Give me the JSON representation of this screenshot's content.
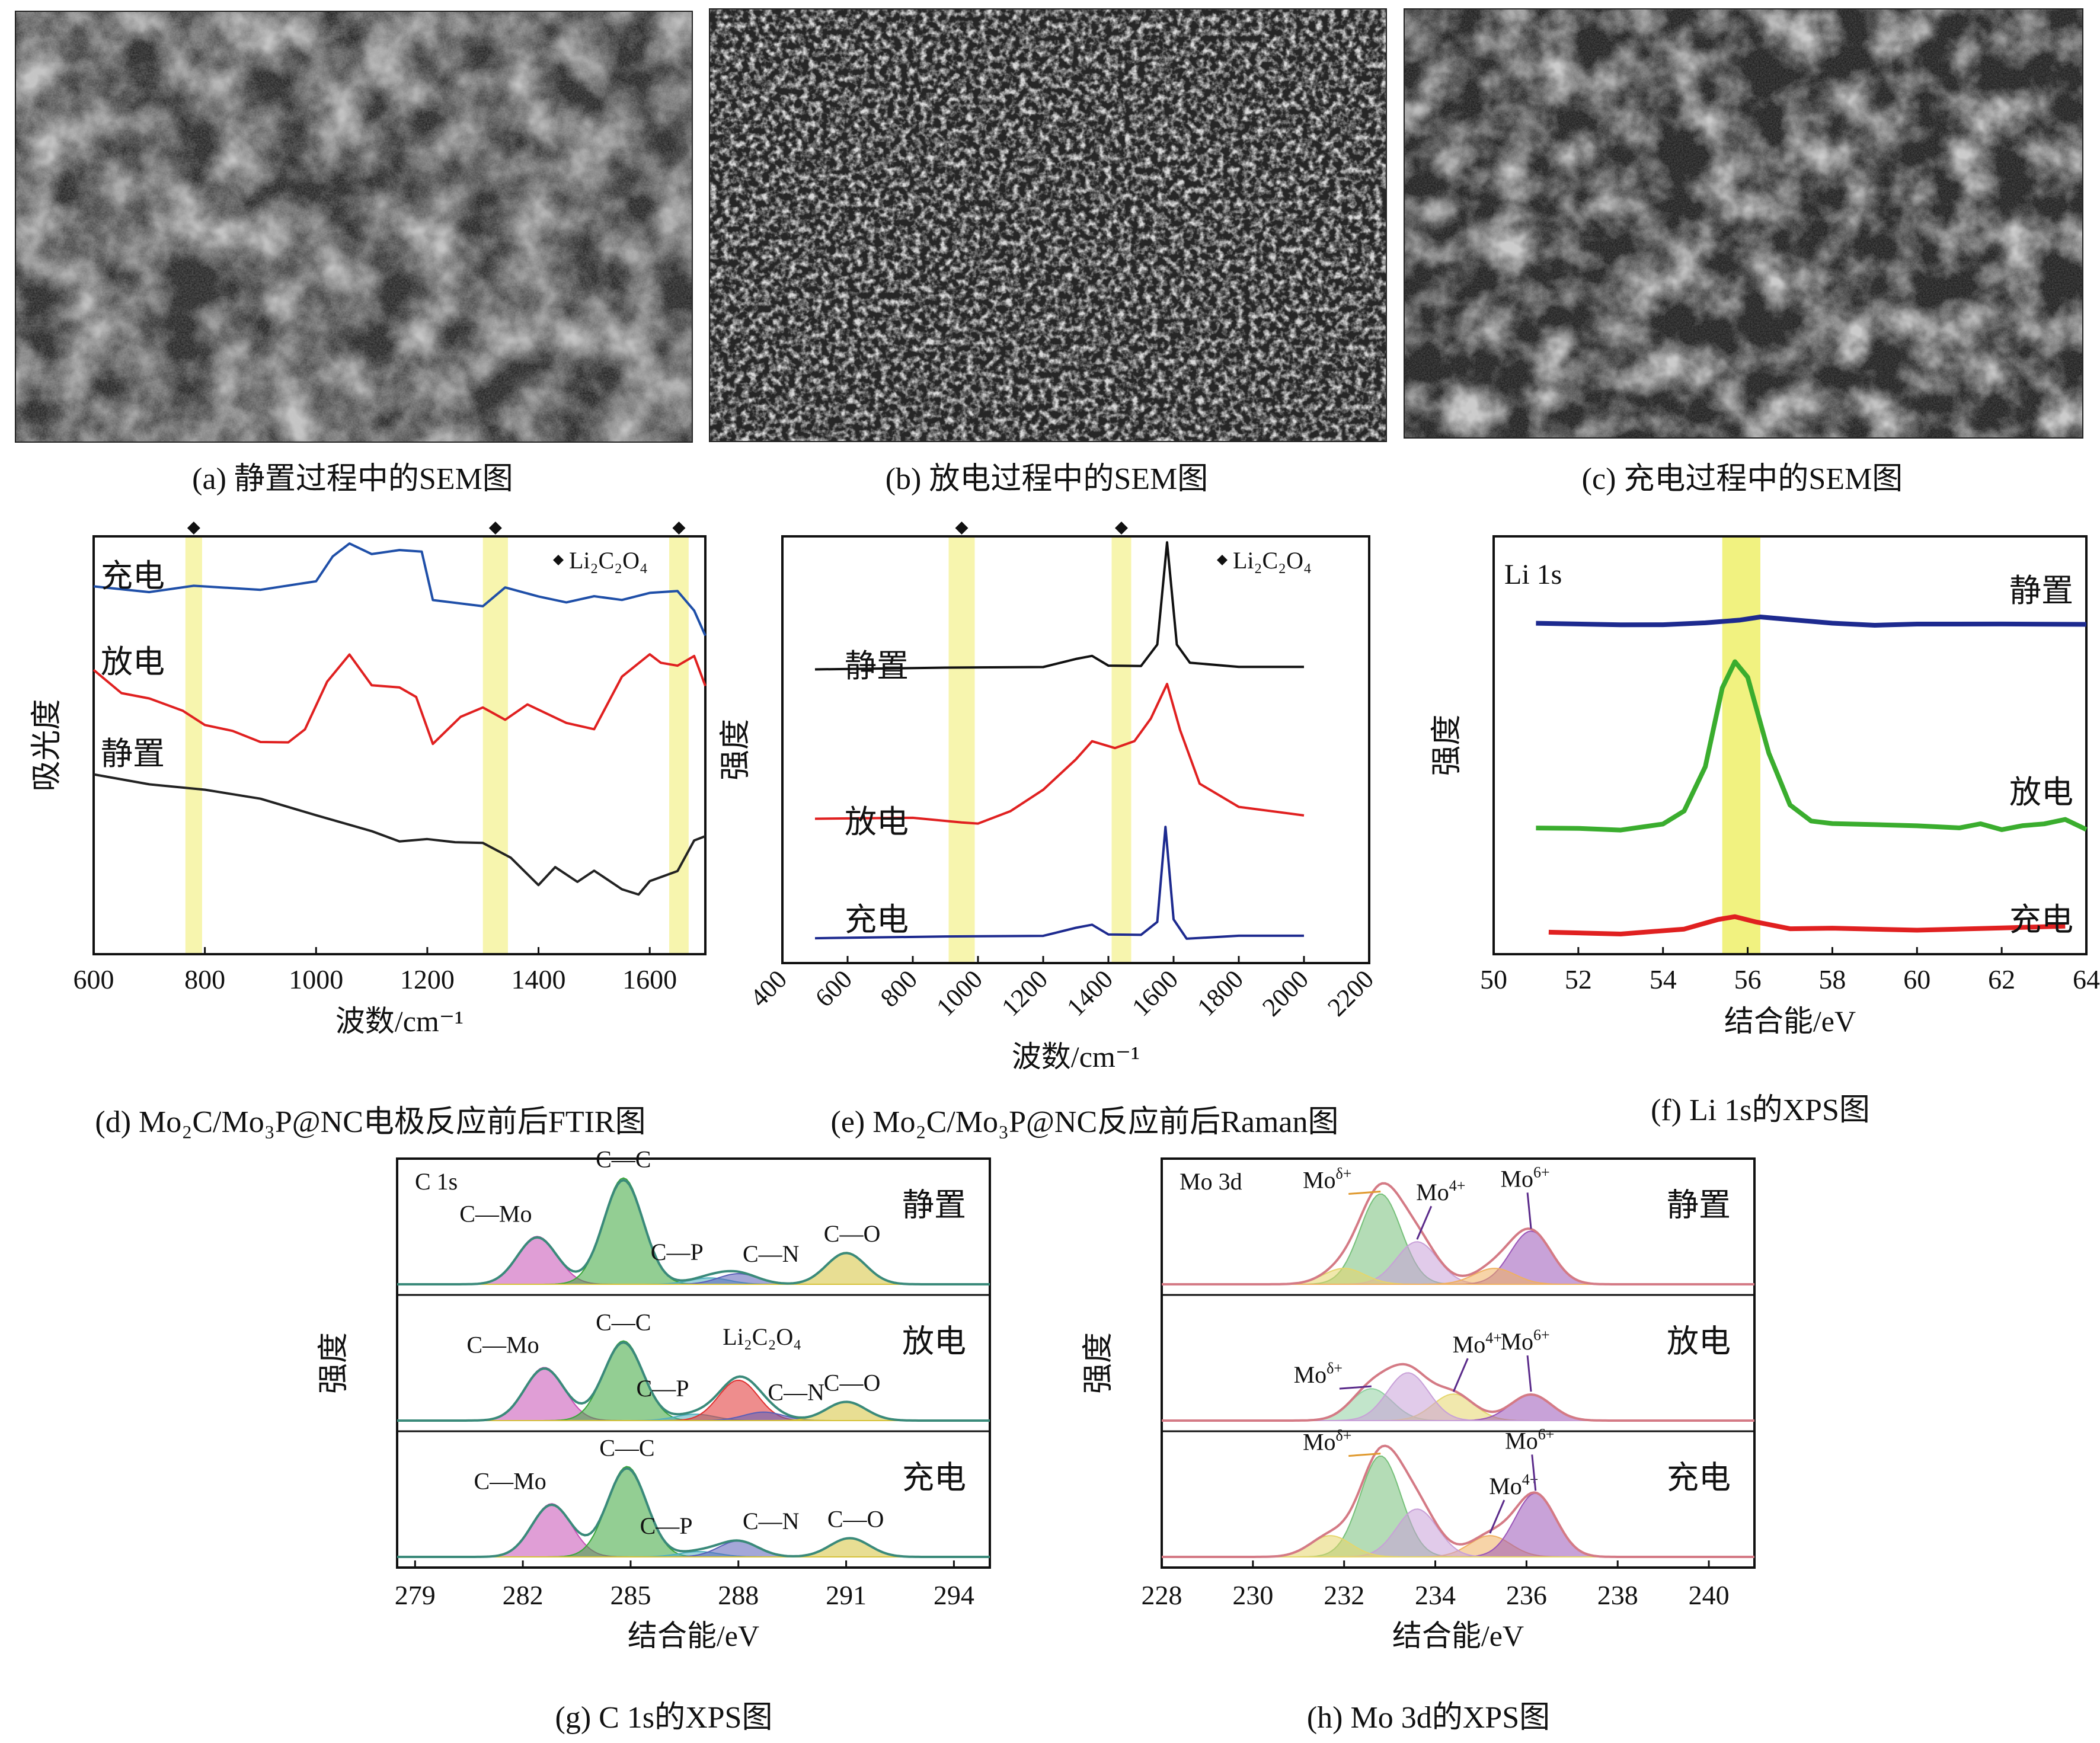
{
  "captions": {
    "a": "(a) 静置过程中的SEM图",
    "b": "(b) 放电过程中的SEM图",
    "c": "(c) 充电过程中的SEM图",
    "d": "(d) Mo₂C/Mo₃P@NC电极反应前后FTIR图",
    "e": "(e) Mo₂C/Mo₃P@NC反应前后Raman图",
    "f": "(f) Li 1s的XPS图",
    "g": "(g) C 1s的XPS图",
    "h": "(h) Mo 3d的XPS图"
  },
  "icons": {
    "marker": "diamond-icon",
    "arrow": "arrow-icon"
  },
  "colors": {
    "charge_ftir": "#1f4fa8",
    "discharge": "#e02020",
    "rest": "#222222",
    "li_rest": "#1d2a8f",
    "li_discharge": "#3aad2e",
    "li_charge": "#e02020",
    "highlight": "#f6f3a0",
    "highlight_f": "#eef06a"
  },
  "chart_data": [
    {
      "id": "d",
      "type": "line",
      "ylabel": "吸光度",
      "xlabel": "波数/cm⁻¹",
      "xlim": [
        600,
        1700
      ],
      "xticks": [
        "600",
        "800",
        "1000",
        "1200",
        "1400",
        "1600"
      ],
      "legend": "Li₂C₂O₄",
      "legend_marker": "diamond",
      "highlight_bands": [
        [
          765,
          795
        ],
        [
          1300,
          1345
        ],
        [
          1635,
          1670
        ]
      ],
      "series": [
        {
          "name": "充电",
          "x": [
            600,
            700,
            780,
            900,
            1000,
            1030,
            1060,
            1100,
            1150,
            1190,
            1210,
            1300,
            1340,
            1400,
            1450,
            1500,
            1550,
            1600,
            1650,
            1680,
            1700
          ],
          "y": [
            0.88,
            0.87,
            0.88,
            0.88,
            0.9,
            0.96,
            0.99,
            0.95,
            0.96,
            0.97,
            0.84,
            0.84,
            0.87,
            0.86,
            0.84,
            0.85,
            0.84,
            0.86,
            0.87,
            0.82,
            0.77
          ]
        },
        {
          "name": "放电",
          "x": [
            600,
            650,
            700,
            760,
            800,
            850,
            900,
            950,
            980,
            1020,
            1060,
            1100,
            1150,
            1180,
            1210,
            1260,
            1300,
            1340,
            1380,
            1450,
            1500,
            1550,
            1600,
            1620,
            1650,
            1680,
            1700
          ],
          "y": [
            0.68,
            0.63,
            0.62,
            0.58,
            0.55,
            0.53,
            0.5,
            0.5,
            0.53,
            0.66,
            0.71,
            0.65,
            0.64,
            0.62,
            0.51,
            0.57,
            0.59,
            0.56,
            0.6,
            0.56,
            0.54,
            0.66,
            0.71,
            0.7,
            0.69,
            0.71,
            0.65
          ]
        },
        {
          "name": "静置",
          "x": [
            600,
            700,
            800,
            900,
            1000,
            1100,
            1150,
            1200,
            1250,
            1300,
            1350,
            1400,
            1430,
            1470,
            1500,
            1550,
            1580,
            1600,
            1650,
            1680,
            1700
          ],
          "y": [
            0.43,
            0.41,
            0.4,
            0.38,
            0.34,
            0.3,
            0.27,
            0.27,
            0.26,
            0.26,
            0.23,
            0.17,
            0.21,
            0.17,
            0.2,
            0.15,
            0.14,
            0.17,
            0.2,
            0.27,
            0.29
          ]
        }
      ]
    },
    {
      "id": "e",
      "type": "line",
      "ylabel": "强度",
      "xlabel": "波数/cm⁻¹",
      "xlim": [
        400,
        2200
      ],
      "xticks": [
        "400",
        "600",
        "800",
        "1000",
        "1200",
        "1400",
        "1600",
        "1800",
        "2000",
        "2200"
      ],
      "legend": "Li₂C₂O₄",
      "legend_marker": "diamond",
      "highlight_bands": [
        [
          910,
          990
        ],
        [
          1410,
          1470
        ]
      ],
      "series": [
        {
          "name": "静置",
          "x": [
            500,
            900,
            1200,
            1300,
            1350,
            1400,
            1500,
            1550,
            1580,
            1610,
            1650,
            1800,
            2000
          ],
          "y": [
            0.69,
            0.69,
            0.69,
            0.71,
            0.72,
            0.7,
            0.7,
            0.75,
            0.99,
            0.75,
            0.7,
            0.69,
            0.69
          ]
        },
        {
          "name": "放电",
          "x": [
            500,
            800,
            950,
            1000,
            1100,
            1200,
            1300,
            1350,
            1420,
            1480,
            1530,
            1580,
            1620,
            1680,
            1800,
            2000
          ],
          "y": [
            0.34,
            0.34,
            0.33,
            0.33,
            0.36,
            0.41,
            0.48,
            0.52,
            0.5,
            0.52,
            0.57,
            0.65,
            0.55,
            0.42,
            0.37,
            0.35
          ]
        },
        {
          "name": "充电",
          "x": [
            500,
            900,
            1200,
            1300,
            1350,
            1400,
            1500,
            1550,
            1575,
            1600,
            1640,
            1800,
            2000
          ],
          "y": [
            0.06,
            0.06,
            0.06,
            0.08,
            0.09,
            0.07,
            0.07,
            0.1,
            0.32,
            0.1,
            0.06,
            0.06,
            0.06
          ]
        }
      ]
    },
    {
      "id": "f",
      "type": "line",
      "ylabel": "强度",
      "xlabel": "结合能/eV",
      "title": "Li 1s",
      "xlim": [
        50,
        64
      ],
      "xticks": [
        "50",
        "52",
        "54",
        "56",
        "58",
        "60",
        "62",
        "64"
      ],
      "highlight_bands": [
        [
          55.4,
          56.3
        ]
      ],
      "series": [
        {
          "name": "静置",
          "x": [
            51,
            53,
            54,
            55,
            55.8,
            56.3,
            57,
            58,
            59,
            60,
            62,
            64
          ],
          "y": [
            0.79,
            0.79,
            0.79,
            0.79,
            0.8,
            0.81,
            0.8,
            0.79,
            0.79,
            0.79,
            0.79,
            0.79
          ]
        },
        {
          "name": "放电",
          "x": [
            51,
            52,
            53,
            54,
            54.5,
            55,
            55.4,
            55.7,
            56.0,
            56.5,
            57,
            57.5,
            58,
            59,
            60,
            61,
            61.5,
            62,
            62.5,
            63,
            63.5,
            64
          ],
          "y": [
            0.3,
            0.3,
            0.3,
            0.31,
            0.34,
            0.45,
            0.64,
            0.7,
            0.66,
            0.48,
            0.36,
            0.32,
            0.31,
            0.31,
            0.31,
            0.3,
            0.31,
            0.3,
            0.31,
            0.31,
            0.32,
            0.3
          ]
        },
        {
          "name": "充电",
          "x": [
            51.3,
            53,
            54.5,
            55.3,
            55.7,
            56.2,
            57,
            58,
            60,
            62,
            63.5
          ],
          "y": [
            0.05,
            0.05,
            0.06,
            0.08,
            0.09,
            0.08,
            0.06,
            0.06,
            0.06,
            0.06,
            0.07
          ]
        }
      ]
    },
    {
      "id": "g",
      "type": "area",
      "title": "C 1s",
      "ylabel": "强度",
      "xlabel": "结合能/eV",
      "xlim": [
        278.5,
        295
      ],
      "xticks": [
        "279",
        "282",
        "285",
        "288",
        "291",
        "294"
      ],
      "panels": [
        {
          "name": "静置",
          "peaks": [
            {
              "label": "C—Mo",
              "center": 282.4,
              "height": 0.45,
              "color": "#c74fb5"
            },
            {
              "label": "C—C",
              "center": 284.8,
              "height": 1.0,
              "color": "#3aa63a"
            },
            {
              "label": "C—P",
              "center": 287.2,
              "height": 0.06,
              "color": "#4fb0c0"
            },
            {
              "label": "C—N",
              "center": 288.0,
              "height": 0.1,
              "color": "#5a5fb8"
            },
            {
              "label": "C—O",
              "center": 291.0,
              "height": 0.3,
              "color": "#d6c23a"
            }
          ]
        },
        {
          "name": "放电",
          "peaks": [
            {
              "label": "C—Mo",
              "center": 282.6,
              "height": 0.5,
              "color": "#c74fb5"
            },
            {
              "label": "C—C",
              "center": 284.8,
              "height": 0.75,
              "color": "#3aa63a"
            },
            {
              "label": "C—P",
              "center": 286.8,
              "height": 0.06,
              "color": "#4fb0c0"
            },
            {
              "label": "Li₂C₂O₄",
              "center": 288.0,
              "height": 0.38,
              "color": "#e03030"
            },
            {
              "label": "C—N",
              "center": 288.7,
              "height": 0.08,
              "color": "#5a5fb8"
            },
            {
              "label": "C—O",
              "center": 291.0,
              "height": 0.18,
              "color": "#d6c23a"
            }
          ]
        },
        {
          "name": "充电",
          "peaks": [
            {
              "label": "C—Mo",
              "center": 282.8,
              "height": 0.5,
              "color": "#c74fb5"
            },
            {
              "label": "C—C",
              "center": 284.9,
              "height": 0.85,
              "color": "#3aa63a"
            },
            {
              "label": "C—P",
              "center": 286.9,
              "height": 0.05,
              "color": "#4fb0c0"
            },
            {
              "label": "C—N",
              "center": 288.0,
              "height": 0.15,
              "color": "#5a5fb8"
            },
            {
              "label": "C—O",
              "center": 291.1,
              "height": 0.18,
              "color": "#d6c23a"
            }
          ]
        }
      ]
    },
    {
      "id": "h",
      "type": "area",
      "title": "Mo 3d",
      "ylabel": "强度",
      "xlabel": "结合能/eV",
      "xlim": [
        228,
        241
      ],
      "xticks": [
        "228",
        "230",
        "232",
        "234",
        "236",
        "238",
        "240"
      ],
      "panels": [
        {
          "name": "静置",
          "peaks": [
            {
              "label": "Mo^δ+",
              "center": 232.8,
              "height": 0.85,
              "color": "#76c07a"
            },
            {
              "label": "Mo^4+",
              "center": 233.6,
              "height": 0.4,
              "color": "#c8a0d8"
            },
            {
              "label": "Mo^6+",
              "center": 236.1,
              "height": 0.5,
              "color": "#9a55b8"
            },
            {
              "label": "",
              "center": 232.0,
              "height": 0.15,
              "color": "#e6d66a"
            },
            {
              "label": "",
              "center": 235.3,
              "height": 0.15,
              "color": "#f0b060"
            }
          ]
        },
        {
          "name": "放电",
          "peaks": [
            {
              "label": "Mo^δ+",
              "center": 232.6,
              "height": 0.3,
              "color": "#8fd0a0"
            },
            {
              "label": "Mo^4+",
              "center": 234.4,
              "height": 0.25,
              "color": "#e6d66a"
            },
            {
              "label": "Mo^6+",
              "center": 236.1,
              "height": 0.25,
              "color": "#9a55b8"
            },
            {
              "label": "",
              "center": 233.4,
              "height": 0.45,
              "color": "#c8a0d8"
            }
          ]
        },
        {
          "name": "充电",
          "peaks": [
            {
              "label": "Mo^δ+",
              "center": 232.8,
              "height": 0.95,
              "color": "#76c07a"
            },
            {
              "label": "Mo^4+",
              "center": 235.2,
              "height": 0.2,
              "color": "#f0b060"
            },
            {
              "label": "Mo^6+",
              "center": 236.2,
              "height": 0.6,
              "color": "#9a55b8"
            },
            {
              "label": "",
              "center": 233.6,
              "height": 0.45,
              "color": "#c8a0d8"
            },
            {
              "label": "",
              "center": 231.7,
              "height": 0.2,
              "color": "#e6d66a"
            }
          ]
        }
      ]
    }
  ]
}
